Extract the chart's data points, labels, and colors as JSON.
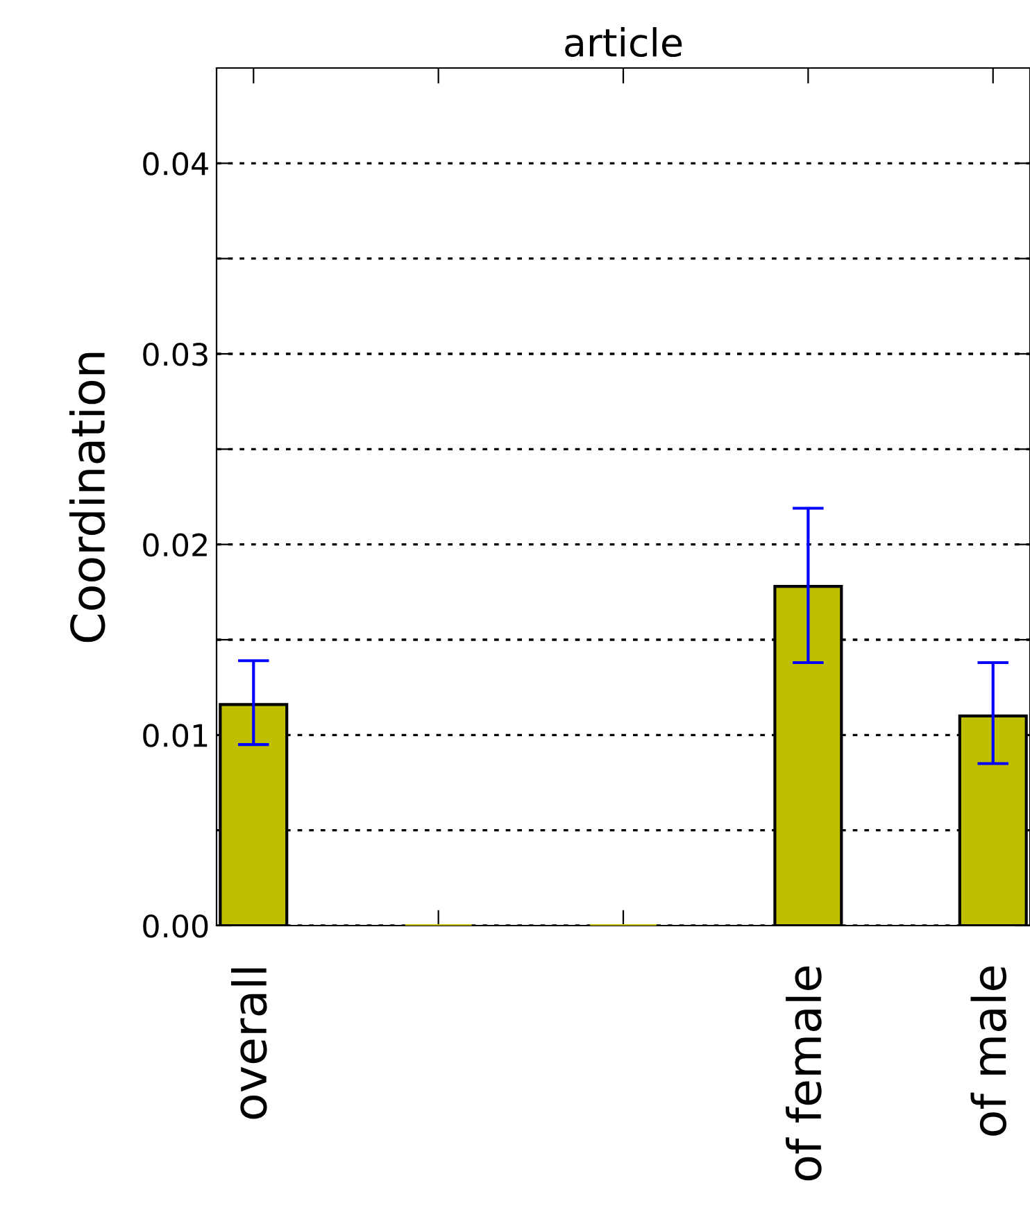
{
  "chart_data": {
    "type": "bar",
    "title": "article",
    "ylabel": "Coordination",
    "categories": [
      "overall",
      null,
      null,
      "of female",
      "of male"
    ],
    "values": [
      0.0116,
      0,
      0,
      0.0178,
      0.011
    ],
    "errors": [
      [
        0.0095,
        0.0139
      ],
      null,
      null,
      [
        0.0138,
        0.0219
      ],
      [
        0.0085,
        0.0138
      ]
    ],
    "color": "#bfbf00",
    "ylim": [
      0,
      0.045
    ],
    "yticks": [
      {
        "value": 0,
        "label": "0.00"
      },
      {
        "value": 0.005,
        "label": null
      },
      {
        "value": 0.01,
        "label": "0.01"
      },
      {
        "value": 0.015,
        "label": null
      },
      {
        "value": 0.02,
        "label": "0.02"
      },
      {
        "value": 0.025,
        "label": null
      },
      {
        "value": 0.03,
        "label": "0.03"
      },
      {
        "value": 0.035,
        "label": null
      },
      {
        "value": 0.04,
        "label": "0.04"
      }
    ],
    "grid": "y",
    "line_style": "dotted"
  }
}
